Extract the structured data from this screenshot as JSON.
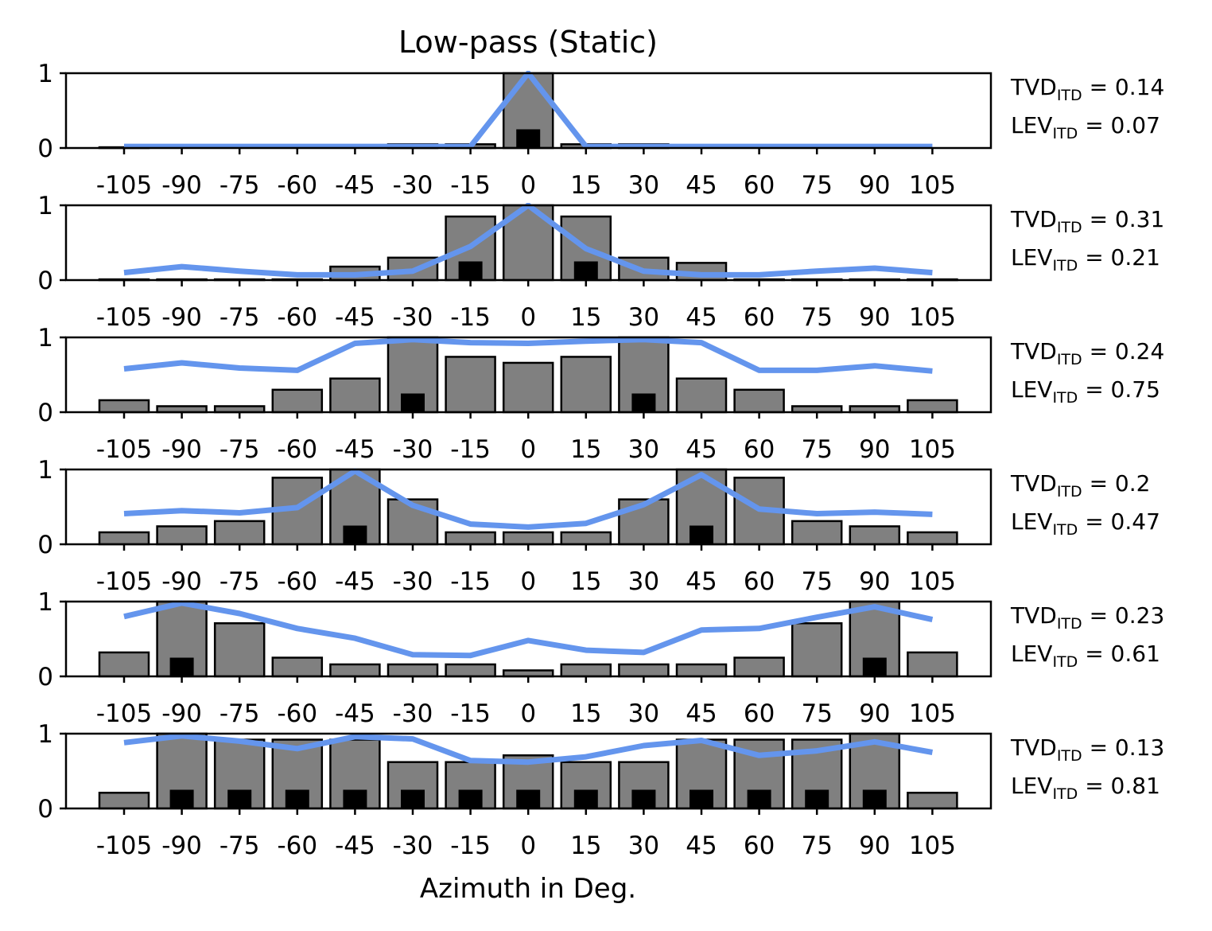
{
  "chart_data": {
    "type": "bar",
    "title": "Low-pass (Static)",
    "xlabel": "Azimuth in Deg.",
    "ylabel": "",
    "ylim": [
      0,
      1
    ],
    "yticks": [
      "0",
      "1"
    ],
    "categories": [
      "-105",
      "-90",
      "-75",
      "-60",
      "-45",
      "-30",
      "-15",
      "0",
      "15",
      "30",
      "45",
      "60",
      "75",
      "90",
      "105"
    ],
    "colors": {
      "bar": "#808080",
      "bar_edge": "#000000",
      "marker": "#000000",
      "line": "#6495ED"
    },
    "metric_names": {
      "tvd_main": "TVD",
      "lev_main": "LEV",
      "sub": "ITD"
    },
    "panels": [
      {
        "bars": [
          0.01,
          0,
          0,
          0,
          0,
          0.05,
          0.05,
          1.0,
          0.05,
          0.05,
          0,
          0,
          0,
          0,
          0
        ],
        "markers": [
          0,
          0,
          0,
          0,
          0,
          0,
          0,
          0.25,
          0,
          0,
          0,
          0,
          0,
          0,
          0
        ],
        "line": [
          0.02,
          0.02,
          0.02,
          0.02,
          0.02,
          0.02,
          0.02,
          1.0,
          0.02,
          0.02,
          0.02,
          0.02,
          0.02,
          0.02,
          0.02
        ],
        "tvd": "0.14",
        "lev": "0.07"
      },
      {
        "bars": [
          0.01,
          0.01,
          0.01,
          0.01,
          0.18,
          0.3,
          0.85,
          1.0,
          0.85,
          0.3,
          0.23,
          0.01,
          0.01,
          0.01,
          0.01
        ],
        "markers": [
          0,
          0,
          0,
          0,
          0,
          0,
          0.25,
          0,
          0.25,
          0,
          0,
          0,
          0,
          0,
          0
        ],
        "line": [
          0.1,
          0.18,
          0.12,
          0.07,
          0.07,
          0.12,
          0.45,
          1.0,
          0.42,
          0.12,
          0.07,
          0.07,
          0.12,
          0.16,
          0.1
        ],
        "tvd": "0.31",
        "lev": "0.21"
      },
      {
        "bars": [
          0.16,
          0.08,
          0.08,
          0.3,
          0.45,
          1.0,
          0.74,
          0.66,
          0.74,
          1.0,
          0.45,
          0.3,
          0.08,
          0.08,
          0.16
        ],
        "markers": [
          0,
          0,
          0,
          0,
          0,
          0.25,
          0,
          0,
          0,
          0.25,
          0,
          0,
          0,
          0,
          0
        ],
        "line": [
          0.58,
          0.66,
          0.59,
          0.56,
          0.92,
          0.97,
          0.93,
          0.92,
          0.95,
          0.97,
          0.93,
          0.56,
          0.56,
          0.62,
          0.55
        ],
        "tvd": "0.24",
        "lev": "0.75"
      },
      {
        "bars": [
          0.16,
          0.24,
          0.31,
          0.89,
          1.0,
          0.6,
          0.16,
          0.16,
          0.16,
          0.6,
          1.0,
          0.89,
          0.31,
          0.24,
          0.16
        ],
        "markers": [
          0,
          0,
          0,
          0,
          0.25,
          0,
          0,
          0,
          0,
          0,
          0.25,
          0,
          0,
          0,
          0
        ],
        "line": [
          0.41,
          0.45,
          0.42,
          0.49,
          0.98,
          0.52,
          0.27,
          0.23,
          0.28,
          0.53,
          0.93,
          0.47,
          0.41,
          0.43,
          0.4
        ],
        "tvd": "0.2",
        "lev": "0.47"
      },
      {
        "bars": [
          0.32,
          1.0,
          0.71,
          0.25,
          0.16,
          0.16,
          0.16,
          0.08,
          0.16,
          0.16,
          0.16,
          0.25,
          0.71,
          1.0,
          0.32
        ],
        "markers": [
          0,
          0.25,
          0,
          0,
          0,
          0,
          0,
          0,
          0,
          0,
          0,
          0,
          0,
          0.25,
          0
        ],
        "line": [
          0.8,
          0.98,
          0.84,
          0.64,
          0.51,
          0.29,
          0.28,
          0.48,
          0.35,
          0.32,
          0.62,
          0.64,
          0.79,
          0.93,
          0.76
        ],
        "tvd": "0.23",
        "lev": "0.61"
      },
      {
        "bars": [
          0.21,
          1.0,
          0.92,
          0.92,
          0.92,
          0.62,
          0.62,
          0.71,
          0.62,
          0.62,
          0.92,
          0.92,
          0.92,
          1.0,
          0.21
        ],
        "markers": [
          0,
          0.25,
          0.25,
          0.25,
          0.25,
          0.25,
          0.25,
          0.25,
          0.25,
          0.25,
          0.25,
          0.25,
          0.25,
          0.25,
          0
        ],
        "line": [
          0.88,
          0.97,
          0.9,
          0.8,
          0.96,
          0.93,
          0.64,
          0.62,
          0.69,
          0.84,
          0.91,
          0.71,
          0.77,
          0.89,
          0.75
        ],
        "tvd": "0.13",
        "lev": "0.81"
      }
    ]
  }
}
